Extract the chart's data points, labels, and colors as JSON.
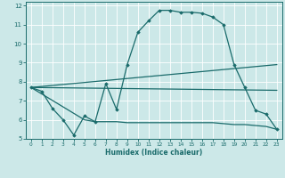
{
  "xlabel": "Humidex (Indice chaleur)",
  "xlim": [
    -0.5,
    23.5
  ],
  "ylim": [
    5,
    12.2
  ],
  "xticks": [
    0,
    1,
    2,
    3,
    4,
    5,
    6,
    7,
    8,
    9,
    10,
    11,
    12,
    13,
    14,
    15,
    16,
    17,
    18,
    19,
    20,
    21,
    22,
    23
  ],
  "yticks": [
    5,
    6,
    7,
    8,
    9,
    10,
    11,
    12
  ],
  "bg_color": "#cce8e8",
  "line_color": "#1a6b6b",
  "grid_color": "#ffffff",
  "lines": [
    {
      "x": [
        0,
        1,
        2,
        3,
        4,
        5,
        6,
        7,
        8,
        9,
        10,
        11,
        12,
        13,
        14,
        15,
        16,
        17,
        18,
        19,
        20,
        21,
        22,
        23
      ],
      "y": [
        7.7,
        7.5,
        6.6,
        6.0,
        5.2,
        6.2,
        5.9,
        7.9,
        6.55,
        8.9,
        10.6,
        11.2,
        11.75,
        11.75,
        11.65,
        11.65,
        11.6,
        11.4,
        11.0,
        8.9,
        7.7,
        6.5,
        6.3,
        5.5
      ],
      "marker": "D",
      "markersize": 1.8,
      "linewidth": 0.9,
      "linestyle": "-"
    },
    {
      "x": [
        0,
        23
      ],
      "y": [
        7.7,
        8.9
      ],
      "marker": null,
      "markersize": 0,
      "linewidth": 0.9,
      "linestyle": "-"
    },
    {
      "x": [
        0,
        23
      ],
      "y": [
        7.7,
        7.55
      ],
      "marker": null,
      "markersize": 0,
      "linewidth": 0.9,
      "linestyle": "-"
    },
    {
      "x": [
        0,
        5,
        6,
        7,
        8,
        9,
        10,
        11,
        12,
        13,
        14,
        15,
        16,
        17,
        18,
        19,
        20,
        21,
        22,
        23
      ],
      "y": [
        7.7,
        6.0,
        5.9,
        5.9,
        5.9,
        5.85,
        5.85,
        5.85,
        5.85,
        5.85,
        5.85,
        5.85,
        5.85,
        5.85,
        5.8,
        5.75,
        5.75,
        5.7,
        5.65,
        5.5
      ],
      "marker": null,
      "markersize": 0,
      "linewidth": 0.9,
      "linestyle": "-"
    }
  ]
}
